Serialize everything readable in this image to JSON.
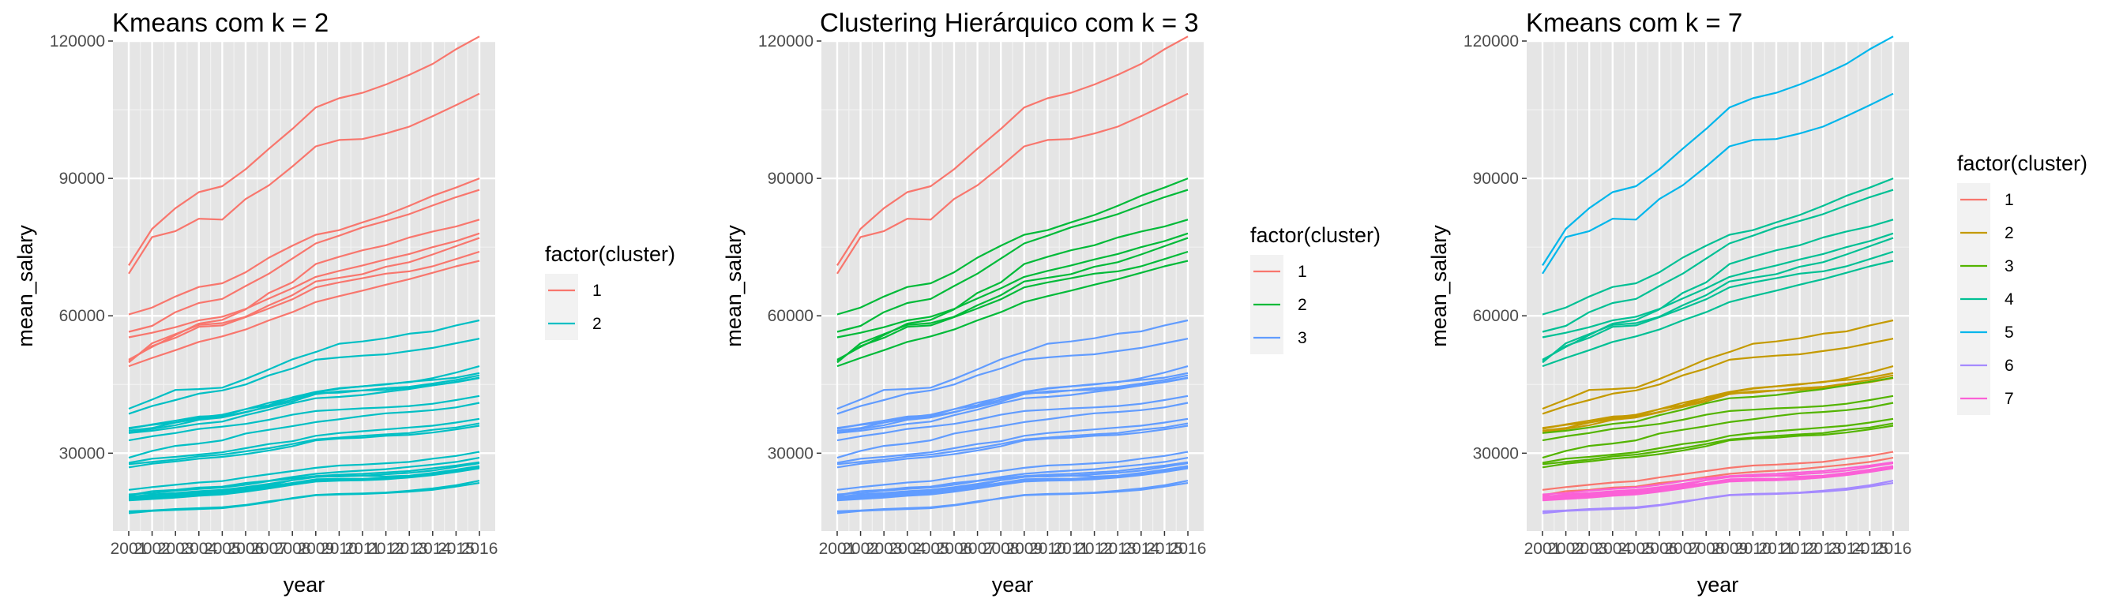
{
  "chart_data": [
    {
      "type": "line",
      "title": "Kmeans com k = 2",
      "xlabel": "year",
      "ylabel": "mean_salary",
      "xlim": [
        2001,
        2016
      ],
      "ylim": [
        13000,
        120000
      ],
      "x_ticks": [
        2001,
        2002,
        2003,
        2004,
        2005,
        2006,
        2007,
        2008,
        2009,
        2010,
        2011,
        2012,
        2013,
        2014,
        2015,
        2016
      ],
      "x_tick_labels": [
        "2001",
        "2002",
        "2003",
        "2004",
        "2005",
        "2006",
        "2007",
        "2008",
        "2009",
        "2010",
        "2011",
        "2012",
        "2013",
        "2014",
        "2015",
        "2016"
      ],
      "y_ticks": [
        30000,
        60000,
        90000,
        120000
      ],
      "y_tick_labels": [
        "30000",
        "60000",
        "90000",
        "120000"
      ],
      "grid": true,
      "background": "#e5e5e5",
      "legend": {
        "title": "factor(cluster)",
        "position": "right",
        "entries": [
          {
            "label": "1",
            "color": "#F8766D"
          },
          {
            "label": "2",
            "color": "#00BFC4"
          }
        ]
      },
      "line_clusters": [
        1,
        1,
        1,
        1,
        1,
        1,
        1,
        1,
        1,
        2,
        2,
        2,
        2,
        2,
        2,
        2,
        2,
        2,
        2,
        2,
        2,
        2,
        2,
        2,
        2,
        2,
        2,
        2,
        2,
        2,
        2,
        2
      ]
    },
    {
      "type": "line",
      "title": "Clustering Hierárquico com k = 3",
      "xlabel": "year",
      "ylabel": "mean_salary",
      "xlim": [
        2001,
        2016
      ],
      "ylim": [
        13000,
        120000
      ],
      "x_ticks": [
        2001,
        2002,
        2003,
        2004,
        2005,
        2006,
        2007,
        2008,
        2009,
        2010,
        2011,
        2012,
        2013,
        2014,
        2015,
        2016
      ],
      "x_tick_labels": [
        "2001",
        "2002",
        "2003",
        "2004",
        "2005",
        "2006",
        "2007",
        "2008",
        "2009",
        "2010",
        "2011",
        "2012",
        "2013",
        "2014",
        "2015",
        "2016"
      ],
      "y_ticks": [
        30000,
        60000,
        90000,
        120000
      ],
      "y_tick_labels": [
        "30000",
        "60000",
        "90000",
        "120000"
      ],
      "grid": true,
      "background": "#e5e5e5",
      "legend": {
        "title": "factor(cluster)",
        "position": "right",
        "entries": [
          {
            "label": "1",
            "color": "#F8766D"
          },
          {
            "label": "2",
            "color": "#00BA38"
          },
          {
            "label": "3",
            "color": "#619CFF"
          }
        ]
      },
      "line_clusters": [
        1,
        1,
        2,
        2,
        2,
        2,
        2,
        2,
        2,
        3,
        3,
        3,
        3,
        3,
        3,
        3,
        3,
        3,
        3,
        3,
        3,
        3,
        3,
        3,
        3,
        3,
        3,
        3,
        3,
        3,
        3,
        3
      ]
    },
    {
      "type": "line",
      "title": "Kmeans com k = 7",
      "xlabel": "year",
      "ylabel": "mean_salary",
      "xlim": [
        2001,
        2016
      ],
      "ylim": [
        13000,
        120000
      ],
      "x_ticks": [
        2001,
        2002,
        2003,
        2004,
        2005,
        2006,
        2007,
        2008,
        2009,
        2010,
        2011,
        2012,
        2013,
        2014,
        2015,
        2016
      ],
      "x_tick_labels": [
        "2001",
        "2002",
        "2003",
        "2004",
        "2005",
        "2006",
        "2007",
        "2008",
        "2009",
        "2010",
        "2011",
        "2012",
        "2013",
        "2014",
        "2015",
        "2016"
      ],
      "y_ticks": [
        30000,
        60000,
        90000,
        120000
      ],
      "y_tick_labels": [
        "30000",
        "60000",
        "90000",
        "120000"
      ],
      "grid": true,
      "background": "#e5e5e5",
      "legend": {
        "title": "factor(cluster)",
        "position": "right",
        "entries": [
          {
            "label": "1",
            "color": "#F8766D"
          },
          {
            "label": "2",
            "color": "#C49A00"
          },
          {
            "label": "3",
            "color": "#53B400"
          },
          {
            "label": "4",
            "color": "#00C094"
          },
          {
            "label": "5",
            "color": "#00B6EB"
          },
          {
            "label": "6",
            "color": "#A58AFF"
          },
          {
            "label": "7",
            "color": "#FB61D7"
          }
        ]
      },
      "line_clusters": [
        5,
        5,
        4,
        4,
        4,
        4,
        4,
        4,
        4,
        2,
        2,
        2,
        2,
        2,
        2,
        3,
        3,
        3,
        3,
        3,
        3,
        1,
        1,
        7,
        7,
        7,
        7,
        7,
        7,
        7,
        6,
        6
      ]
    }
  ],
  "shared_series": {
    "x": [
      2001,
      2002,
      2003,
      2004,
      2005,
      2006,
      2007,
      2008,
      2009,
      2010,
      2011,
      2012,
      2013,
      2014,
      2015,
      2016
    ],
    "lines": [
      [
        71000,
        79000,
        83500,
        87000,
        88300,
        92000,
        96500,
        100800,
        105500,
        107500,
        108700,
        110500,
        112600,
        115000,
        118200,
        121000
      ],
      [
        69200,
        77200,
        78500,
        81200,
        81000,
        85500,
        88500,
        92600,
        97000,
        98400,
        98600,
        99800,
        101300,
        103600,
        106000,
        108500
      ],
      [
        60300,
        61800,
        64200,
        66300,
        67100,
        69500,
        72700,
        75300,
        77700,
        78700,
        80400,
        82000,
        84000,
        86200,
        88000,
        90000
      ],
      [
        56500,
        57800,
        60800,
        62800,
        63700,
        66500,
        69200,
        72500,
        75800,
        77500,
        79300,
        80700,
        82200,
        84100,
        85900,
        87500
      ],
      [
        50400,
        53200,
        55800,
        58300,
        59100,
        61400,
        65000,
        67300,
        71300,
        72900,
        74300,
        75400,
        77100,
        78400,
        79500,
        81000
      ],
      [
        49800,
        54000,
        56000,
        58000,
        58400,
        59800,
        62300,
        64500,
        67500,
        68300,
        69100,
        70700,
        71700,
        73400,
        75200,
        77000
      ],
      [
        50200,
        53400,
        55200,
        57600,
        57900,
        59700,
        61600,
        63600,
        66200,
        67300,
        68200,
        69200,
        69700,
        70800,
        72400,
        74000
      ],
      [
        55300,
        56300,
        57500,
        59000,
        59800,
        61500,
        63800,
        66000,
        68500,
        69800,
        71000,
        72300,
        73500,
        75000,
        76300,
        78000
      ],
      [
        49000,
        50800,
        52500,
        54300,
        55500,
        57000,
        59000,
        60800,
        63000,
        64300,
        65500,
        66800,
        68000,
        69400,
        70800,
        72000
      ],
      [
        39700,
        41700,
        43800,
        44000,
        44300,
        46200,
        48300,
        50500,
        52100,
        53900,
        54400,
        55100,
        56100,
        56600,
        57900,
        59000
      ],
      [
        38600,
        40300,
        41600,
        43000,
        43700,
        45000,
        47000,
        48500,
        50400,
        50900,
        51300,
        51600,
        52300,
        53000,
        54000,
        55000
      ],
      [
        35500,
        36200,
        36700,
        37800,
        38400,
        39600,
        41000,
        42100,
        43200,
        44100,
        44600,
        45100,
        45500,
        46400,
        47600,
        49000
      ],
      [
        35300,
        36300,
        37100,
        38000,
        38200,
        39600,
        40500,
        42200,
        43400,
        44200,
        44600,
        45000,
        45600,
        46000,
        46500,
        47500
      ],
      [
        34900,
        35500,
        36700,
        37500,
        38000,
        39000,
        40100,
        41300,
        42900,
        43500,
        43700,
        44200,
        44500,
        45200,
        46000,
        47000
      ],
      [
        34500,
        35300,
        36100,
        37300,
        37800,
        38900,
        40300,
        41700,
        43100,
        43200,
        43700,
        43800,
        44300,
        44800,
        45500,
        46400
      ],
      [
        34400,
        34900,
        35600,
        36400,
        36900,
        38300,
        39500,
        40900,
        42000,
        42300,
        42700,
        43400,
        44000,
        44800,
        45600,
        46500
      ],
      [
        32800,
        33700,
        34400,
        35300,
        35800,
        36400,
        37300,
        38400,
        39200,
        39500,
        39800,
        40000,
        40300,
        40800,
        41600,
        42500
      ],
      [
        29000,
        30500,
        31600,
        32100,
        32800,
        34300,
        35100,
        35900,
        36800,
        37400,
        38100,
        38700,
        39000,
        39400,
        40000,
        41000
      ],
      [
        27900,
        28800,
        29200,
        29700,
        30200,
        31100,
        32000,
        32600,
        33800,
        34400,
        34800,
        35200,
        35600,
        36000,
        36700,
        37500
      ],
      [
        27600,
        28100,
        28600,
        29300,
        29700,
        30400,
        31100,
        32000,
        33000,
        33400,
        33800,
        34100,
        34400,
        35100,
        35600,
        36500
      ],
      [
        26900,
        27700,
        28200,
        28800,
        29200,
        29800,
        30600,
        31500,
        32800,
        33200,
        33400,
        33800,
        34000,
        34500,
        35200,
        36000
      ],
      [
        22000,
        22600,
        23100,
        23600,
        23900,
        24700,
        25400,
        26100,
        26800,
        27300,
        27500,
        27800,
        28100,
        28800,
        29400,
        30300
      ],
      [
        20800,
        21700,
        22000,
        22500,
        22700,
        23500,
        24000,
        24800,
        25500,
        25900,
        26200,
        26500,
        27000,
        27500,
        28100,
        29000
      ],
      [
        21000,
        21300,
        21800,
        22200,
        22500,
        23100,
        23900,
        24500,
        25000,
        25300,
        25500,
        25800,
        26100,
        26700,
        27300,
        28000
      ],
      [
        20400,
        21000,
        21300,
        21700,
        22000,
        22600,
        23300,
        24100,
        24800,
        25000,
        25100,
        25400,
        25700,
        26200,
        27000,
        27800
      ],
      [
        20200,
        20700,
        21100,
        21500,
        21800,
        22300,
        23000,
        24100,
        25000,
        24900,
        25100,
        24900,
        25100,
        25700,
        26400,
        27200
      ],
      [
        20600,
        20800,
        21000,
        21300,
        21600,
        22100,
        22800,
        23500,
        24300,
        24400,
        24400,
        24600,
        25000,
        25600,
        26300,
        27000
      ],
      [
        19900,
        20300,
        20600,
        21000,
        21300,
        21900,
        22500,
        23300,
        24000,
        24200,
        24300,
        24500,
        24900,
        25400,
        26100,
        26900
      ],
      [
        19700,
        20000,
        20300,
        20700,
        21000,
        21600,
        22300,
        23100,
        23800,
        24000,
        24100,
        24300,
        24700,
        25200,
        25900,
        26700
      ],
      [
        20000,
        20400,
        20700,
        21100,
        21400,
        22000,
        22700,
        23500,
        24200,
        24300,
        24400,
        24600,
        25000,
        25500,
        26200,
        27100
      ],
      [
        16900,
        17400,
        17600,
        17800,
        18000,
        18600,
        19300,
        20200,
        20900,
        21100,
        21200,
        21400,
        21800,
        22300,
        23000,
        24000
      ],
      [
        17300,
        17500,
        17800,
        18000,
        18200,
        18700,
        19500,
        20100,
        20800,
        21000,
        21100,
        21300,
        21600,
        22000,
        22700,
        23500
      ]
    ]
  }
}
